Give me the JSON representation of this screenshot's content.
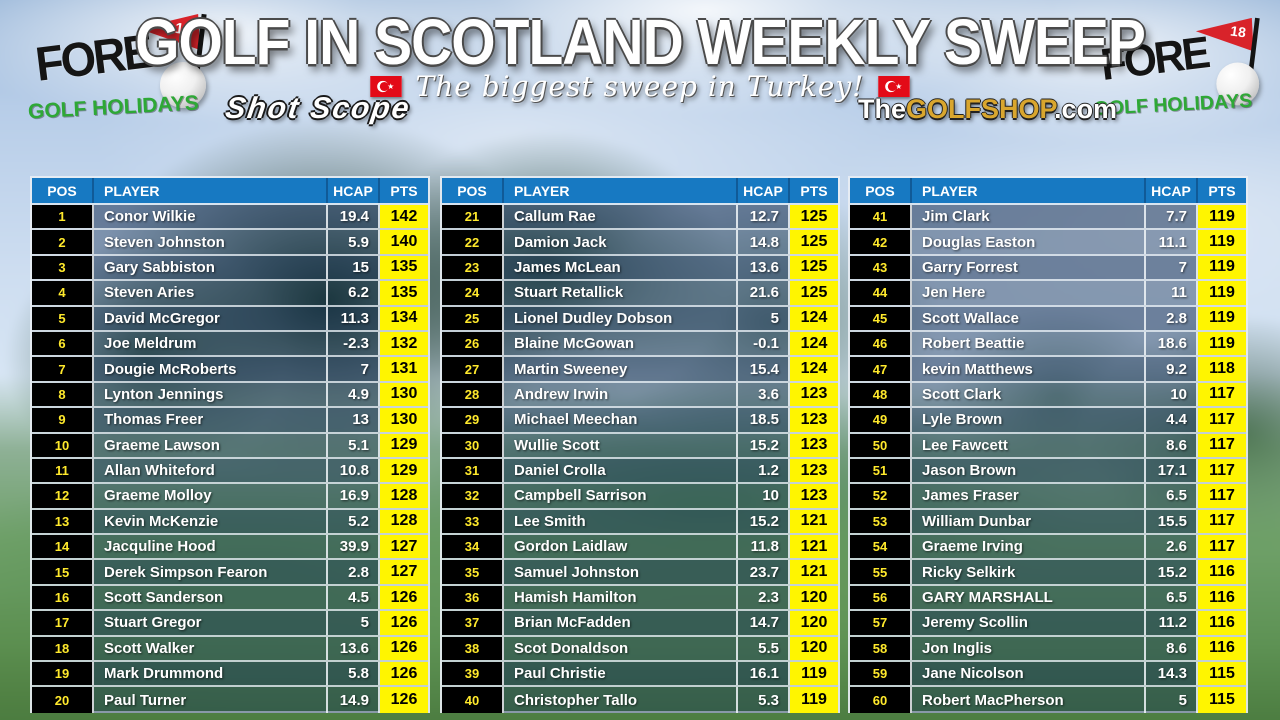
{
  "header": {
    "title": "GOLF IN SCOTLAND WEEKLY SWEEP",
    "subtitle": "The biggest sweep in Turkey!",
    "fore_logo": {
      "name": "FORE",
      "tagline": "GOLF HOLIDAYS",
      "flag_number": "18"
    },
    "shotscope_label": "Shot Scope",
    "golfshop": {
      "the": "The",
      "golfshop": "GOLFSHOP",
      "com": ".com"
    }
  },
  "columns": [
    "POS",
    "PLAYER",
    "HCAP",
    "PTS"
  ],
  "leaderboards": [
    {
      "rows": [
        {
          "pos": "1",
          "player": "Conor Wilkie",
          "hcap": "19.4",
          "pts": "142"
        },
        {
          "pos": "2",
          "player": "Steven Johnston",
          "hcap": "5.9",
          "pts": "140"
        },
        {
          "pos": "3",
          "player": "Gary Sabbiston",
          "hcap": "15",
          "pts": "135"
        },
        {
          "pos": "4",
          "player": "Steven Aries",
          "hcap": "6.2",
          "pts": "135"
        },
        {
          "pos": "5",
          "player": "David McGregor",
          "hcap": "11.3",
          "pts": "134"
        },
        {
          "pos": "6",
          "player": "Joe Meldrum",
          "hcap": "-2.3",
          "pts": "132"
        },
        {
          "pos": "7",
          "player": "Dougie McRoberts",
          "hcap": "7",
          "pts": "131"
        },
        {
          "pos": "8",
          "player": "Lynton Jennings",
          "hcap": "4.9",
          "pts": "130"
        },
        {
          "pos": "9",
          "player": "Thomas Freer",
          "hcap": "13",
          "pts": "130"
        },
        {
          "pos": "10",
          "player": "Graeme Lawson",
          "hcap": "5.1",
          "pts": "129"
        },
        {
          "pos": "11",
          "player": "Allan Whiteford",
          "hcap": "10.8",
          "pts": "129"
        },
        {
          "pos": "12",
          "player": "Graeme Molloy",
          "hcap": "16.9",
          "pts": "128"
        },
        {
          "pos": "13",
          "player": "Kevin McKenzie",
          "hcap": "5.2",
          "pts": "128"
        },
        {
          "pos": "14",
          "player": "Jacquline Hood",
          "hcap": "39.9",
          "pts": "127"
        },
        {
          "pos": "15",
          "player": "Derek Simpson Fearon",
          "hcap": "2.8",
          "pts": "127"
        },
        {
          "pos": "16",
          "player": "Scott Sanderson",
          "hcap": "4.5",
          "pts": "126"
        },
        {
          "pos": "17",
          "player": "Stuart Gregor",
          "hcap": "5",
          "pts": "126"
        },
        {
          "pos": "18",
          "player": "Scott Walker",
          "hcap": "13.6",
          "pts": "126"
        },
        {
          "pos": "19",
          "player": "Mark Drummond",
          "hcap": "5.8",
          "pts": "126"
        },
        {
          "pos": "20",
          "player": "Paul Turner",
          "hcap": "14.9",
          "pts": "126"
        }
      ]
    },
    {
      "rows": [
        {
          "pos": "21",
          "player": "Callum Rae",
          "hcap": "12.7",
          "pts": "125"
        },
        {
          "pos": "22",
          "player": "Damion Jack",
          "hcap": "14.8",
          "pts": "125"
        },
        {
          "pos": "23",
          "player": "James McLean",
          "hcap": "13.6",
          "pts": "125"
        },
        {
          "pos": "24",
          "player": "Stuart Retallick",
          "hcap": "21.6",
          "pts": "125"
        },
        {
          "pos": "25",
          "player": "Lionel Dudley Dobson",
          "hcap": "5",
          "pts": "124"
        },
        {
          "pos": "26",
          "player": "Blaine McGowan",
          "hcap": "-0.1",
          "pts": "124"
        },
        {
          "pos": "27",
          "player": "Martin Sweeney",
          "hcap": "15.4",
          "pts": "124"
        },
        {
          "pos": "28",
          "player": "Andrew Irwin",
          "hcap": "3.6",
          "pts": "123"
        },
        {
          "pos": "29",
          "player": "Michael Meechan",
          "hcap": "18.5",
          "pts": "123"
        },
        {
          "pos": "30",
          "player": "Wullie Scott",
          "hcap": "15.2",
          "pts": "123"
        },
        {
          "pos": "31",
          "player": "Daniel Crolla",
          "hcap": "1.2",
          "pts": "123"
        },
        {
          "pos": "32",
          "player": "Campbell Sarrison",
          "hcap": "10",
          "pts": "123"
        },
        {
          "pos": "33",
          "player": "Lee Smith",
          "hcap": "15.2",
          "pts": "121"
        },
        {
          "pos": "34",
          "player": "Gordon Laidlaw",
          "hcap": "11.8",
          "pts": "121"
        },
        {
          "pos": "35",
          "player": "Samuel Johnston",
          "hcap": "23.7",
          "pts": "121"
        },
        {
          "pos": "36",
          "player": "Hamish Hamilton",
          "hcap": "2.3",
          "pts": "120"
        },
        {
          "pos": "37",
          "player": "Brian McFadden",
          "hcap": "14.7",
          "pts": "120"
        },
        {
          "pos": "38",
          "player": "Scot Donaldson",
          "hcap": "5.5",
          "pts": "120"
        },
        {
          "pos": "39",
          "player": "Paul Christie",
          "hcap": "16.1",
          "pts": "119"
        },
        {
          "pos": "40",
          "player": "Christopher Tallo",
          "hcap": "5.3",
          "pts": "119"
        }
      ]
    },
    {
      "rows": [
        {
          "pos": "41",
          "player": "Jim Clark",
          "hcap": "7.7",
          "pts": "119"
        },
        {
          "pos": "42",
          "player": "Douglas Easton",
          "hcap": "11.1",
          "pts": "119"
        },
        {
          "pos": "43",
          "player": "Garry Forrest",
          "hcap": "7",
          "pts": "119"
        },
        {
          "pos": "44",
          "player": "Jen Here",
          "hcap": "11",
          "pts": "119"
        },
        {
          "pos": "45",
          "player": "Scott Wallace",
          "hcap": "2.8",
          "pts": "119"
        },
        {
          "pos": "46",
          "player": "Robert Beattie",
          "hcap": "18.6",
          "pts": "119"
        },
        {
          "pos": "47",
          "player": "kevin Matthews",
          "hcap": "9.2",
          "pts": "118"
        },
        {
          "pos": "48",
          "player": "Scott Clark",
          "hcap": "10",
          "pts": "117"
        },
        {
          "pos": "49",
          "player": "Lyle Brown",
          "hcap": "4.4",
          "pts": "117"
        },
        {
          "pos": "50",
          "player": "Lee Fawcett",
          "hcap": "8.6",
          "pts": "117"
        },
        {
          "pos": "51",
          "player": "Jason Brown",
          "hcap": "17.1",
          "pts": "117"
        },
        {
          "pos": "52",
          "player": "James Fraser",
          "hcap": "6.5",
          "pts": "117"
        },
        {
          "pos": "53",
          "player": "William Dunbar",
          "hcap": "15.5",
          "pts": "117"
        },
        {
          "pos": "54",
          "player": "Graeme Irving",
          "hcap": "2.6",
          "pts": "117"
        },
        {
          "pos": "55",
          "player": "Ricky Selkirk",
          "hcap": "15.2",
          "pts": "116"
        },
        {
          "pos": "56",
          "player": "GARY MARSHALL",
          "hcap": "6.5",
          "pts": "116"
        },
        {
          "pos": "57",
          "player": "Jeremy Scollin",
          "hcap": "11.2",
          "pts": "116"
        },
        {
          "pos": "58",
          "player": "Jon Inglis",
          "hcap": "8.6",
          "pts": "116"
        },
        {
          "pos": "59",
          "player": "Jane Nicolson",
          "hcap": "14.3",
          "pts": "115"
        },
        {
          "pos": "60",
          "player": "Robert MacPherson",
          "hcap": "5",
          "pts": "115"
        }
      ]
    }
  ],
  "colors": {
    "header_blue": "#1779c2",
    "pts_yellow": "#fff500",
    "pos_yellow": "#ffe92c",
    "flag_red": "#d8232a",
    "turkey_red": "#e30a17",
    "fore_green": "#2ea836",
    "golfshop_gold": "#d9a62e"
  }
}
